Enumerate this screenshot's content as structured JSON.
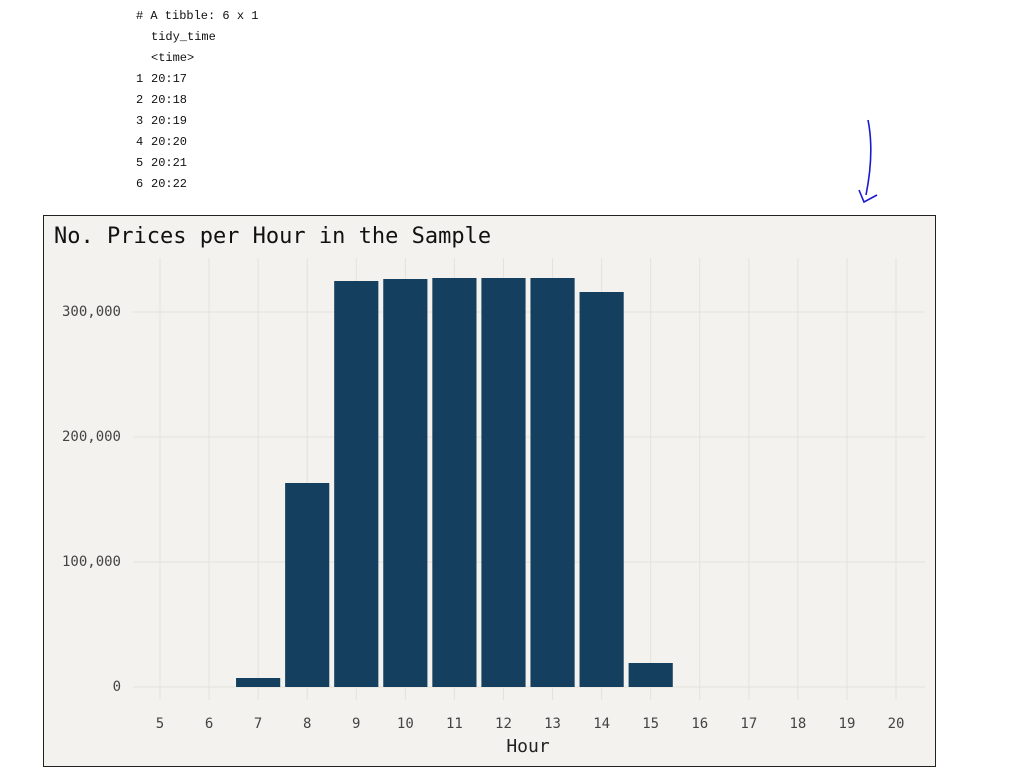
{
  "console": {
    "header": "# A tibble: 6 x 1",
    "column": "tidy_time",
    "column_type": "<time>",
    "rows": [
      [
        "1",
        "20:17"
      ],
      [
        "2",
        "20:18"
      ],
      [
        "3",
        "20:19"
      ],
      [
        "4",
        "20:20"
      ],
      [
        "5",
        "20:21"
      ],
      [
        "6",
        "20:22"
      ]
    ]
  },
  "chart_data": {
    "type": "bar",
    "title": "No. Prices per Hour in the Sample",
    "x_label": "Hour",
    "x": [
      7,
      8,
      9,
      10,
      11,
      12,
      13,
      14,
      15
    ],
    "values": [
      7200,
      163200,
      324800,
      326400,
      327200,
      327200,
      327200,
      316000,
      19200
    ],
    "color": "#143f5f",
    "xlim": [
      4.45,
      20.59
    ],
    "xticks": [
      5,
      6,
      7,
      8,
      9,
      10,
      11,
      12,
      13,
      14,
      15,
      16,
      17,
      18,
      19,
      20
    ],
    "ylim": [
      -10400,
      343200
    ],
    "yticks": [
      0,
      {
        "value": 100000,
        "label": "100,000"
      },
      {
        "value": 200000,
        "label": "200,000"
      },
      {
        "value": 300000,
        "label": "300,000"
      }
    ],
    "grid": true
  }
}
